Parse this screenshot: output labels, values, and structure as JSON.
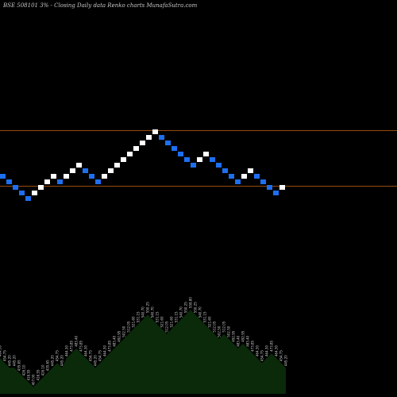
{
  "chart_data": {
    "type": "renko",
    "title": "BSE 508101 3% - Closing Daily data  Renko  charts MunafaSutra.com",
    "up_color": "#ffffff",
    "down_color": "#1e6ff0",
    "background": "#000000",
    "reference_line_color": "#c86414",
    "volume_color": "#0a2a0a",
    "bricks": [
      {
        "dir": "down",
        "level": 6
      },
      {
        "dir": "down",
        "level": 5
      },
      {
        "dir": "down",
        "level": 4
      },
      {
        "dir": "down",
        "level": 3
      },
      {
        "dir": "down",
        "level": 2
      },
      {
        "dir": "up",
        "level": 3
      },
      {
        "dir": "up",
        "level": 4
      },
      {
        "dir": "up",
        "level": 5
      },
      {
        "dir": "up",
        "level": 6
      },
      {
        "dir": "down",
        "level": 5
      },
      {
        "dir": "up",
        "level": 6
      },
      {
        "dir": "up",
        "level": 7
      },
      {
        "dir": "up",
        "level": 8
      },
      {
        "dir": "down",
        "level": 7
      },
      {
        "dir": "down",
        "level": 6
      },
      {
        "dir": "down",
        "level": 5
      },
      {
        "dir": "up",
        "level": 6
      },
      {
        "dir": "up",
        "level": 7
      },
      {
        "dir": "up",
        "level": 8
      },
      {
        "dir": "up",
        "level": 9
      },
      {
        "dir": "up",
        "level": 10
      },
      {
        "dir": "up",
        "level": 11
      },
      {
        "dir": "up",
        "level": 12
      },
      {
        "dir": "up",
        "level": 13
      },
      {
        "dir": "up",
        "level": 14
      },
      {
        "dir": "down",
        "level": 13
      },
      {
        "dir": "down",
        "level": 12
      },
      {
        "dir": "down",
        "level": 11
      },
      {
        "dir": "down",
        "level": 10
      },
      {
        "dir": "down",
        "level": 9
      },
      {
        "dir": "down",
        "level": 8
      },
      {
        "dir": "up",
        "level": 9
      },
      {
        "dir": "up",
        "level": 10
      },
      {
        "dir": "down",
        "level": 9
      },
      {
        "dir": "down",
        "level": 8
      },
      {
        "dir": "down",
        "level": 7
      },
      {
        "dir": "down",
        "level": 6
      },
      {
        "dir": "down",
        "level": 5
      },
      {
        "dir": "up",
        "level": 6
      },
      {
        "dir": "up",
        "level": 7
      },
      {
        "dir": "down",
        "level": 6
      },
      {
        "dir": "down",
        "level": 5
      },
      {
        "dir": "down",
        "level": 4
      },
      {
        "dir": "down",
        "level": 3
      },
      {
        "dir": "up",
        "level": 4
      }
    ],
    "reference_lines": [
      {
        "level": 14.3
      },
      {
        "level": 4.3
      }
    ],
    "volume_labels": [
      "464.30",
      "454.75",
      "445.20",
      "445.20",
      "435.65",
      "426.10",
      "416.55",
      "407.00",
      "416.55",
      "426.10",
      "435.65",
      "445.20",
      "454.75",
      "445.20",
      "464.30",
      "473.85",
      "483.40",
      "473.85",
      "464.30",
      "454.75",
      "445.20",
      "454.75",
      "464.30",
      "473.85",
      "483.40",
      "492.95",
      "502.50",
      "512.05",
      "521.60",
      "531.15",
      "540.70",
      "550.25",
      "540.70",
      "531.15",
      "521.60",
      "512.05",
      "521.60",
      "531.15",
      "540.70",
      "550.25",
      "559.80",
      "550.25",
      "540.70",
      "531.15",
      "521.60",
      "512.05",
      "502.50",
      "512.05",
      "502.50",
      "492.95",
      "483.40",
      "492.95",
      "483.40",
      "473.85",
      "464.30",
      "454.75",
      "464.30",
      "473.85",
      "464.30",
      "454.75",
      "445.20"
    ]
  }
}
